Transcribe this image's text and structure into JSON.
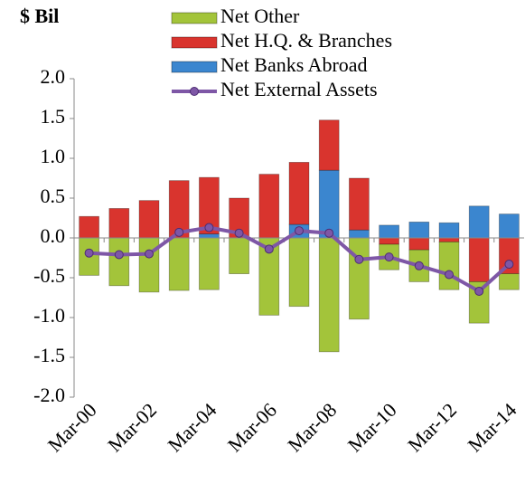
{
  "chart_data": {
    "type": "stacked-bar-line",
    "ylabel": "$ Bil",
    "categories": [
      "Mar-00",
      null,
      "Mar-02",
      null,
      "Mar-04",
      null,
      "Mar-06",
      null,
      "Mar-08",
      null,
      "Mar-10",
      null,
      "Mar-12",
      null,
      "Mar-14"
    ],
    "series": [
      {
        "name": "Net Other",
        "color": "#a3c43a",
        "kind": "bar",
        "values": [
          -0.47,
          -0.6,
          -0.68,
          -0.66,
          -0.65,
          -0.45,
          -0.97,
          -0.86,
          -1.43,
          -1.02,
          -0.32,
          -0.4,
          -0.6,
          -0.52,
          -0.2
        ]
      },
      {
        "name": "Net H.Q. & Branches",
        "color": "#d9342e",
        "kind": "bar",
        "values": [
          0.27,
          0.37,
          0.47,
          0.72,
          0.71,
          0.5,
          0.8,
          0.78,
          0.63,
          0.65,
          -0.08,
          -0.15,
          -0.05,
          -0.55,
          -0.45
        ]
      },
      {
        "name": "Net Banks Abroad",
        "color": "#3b86cf",
        "kind": "bar",
        "values": [
          0,
          0,
          0,
          0,
          0.05,
          0,
          0,
          0.17,
          0.85,
          0.1,
          0.16,
          0.2,
          0.19,
          0.4,
          0.3
        ]
      },
      {
        "name": "Net External Assets",
        "color": "#7e57a6",
        "kind": "line",
        "values": [
          -0.19,
          -0.21,
          -0.2,
          0.07,
          0.13,
          0.06,
          -0.14,
          0.09,
          0.06,
          -0.27,
          -0.24,
          -0.35,
          -0.46,
          -0.67,
          -0.33
        ]
      }
    ],
    "ylim": [
      -2.0,
      2.0
    ],
    "yticks": [
      {
        "value": -2.0,
        "label": "-2.0"
      },
      {
        "value": -1.5,
        "label": "-1.5"
      },
      {
        "value": -1.0,
        "label": "-1.0"
      },
      {
        "value": -0.5,
        "label": "-0.5"
      },
      {
        "value": 0.0,
        "label": "0.0"
      },
      {
        "value": 0.5,
        "label": "0.5"
      },
      {
        "value": 1.0,
        "label": "1.0"
      },
      {
        "value": 1.5,
        "label": "1.5"
      },
      {
        "value": 2.0,
        "label": "2.0"
      }
    ],
    "grid": false
  }
}
